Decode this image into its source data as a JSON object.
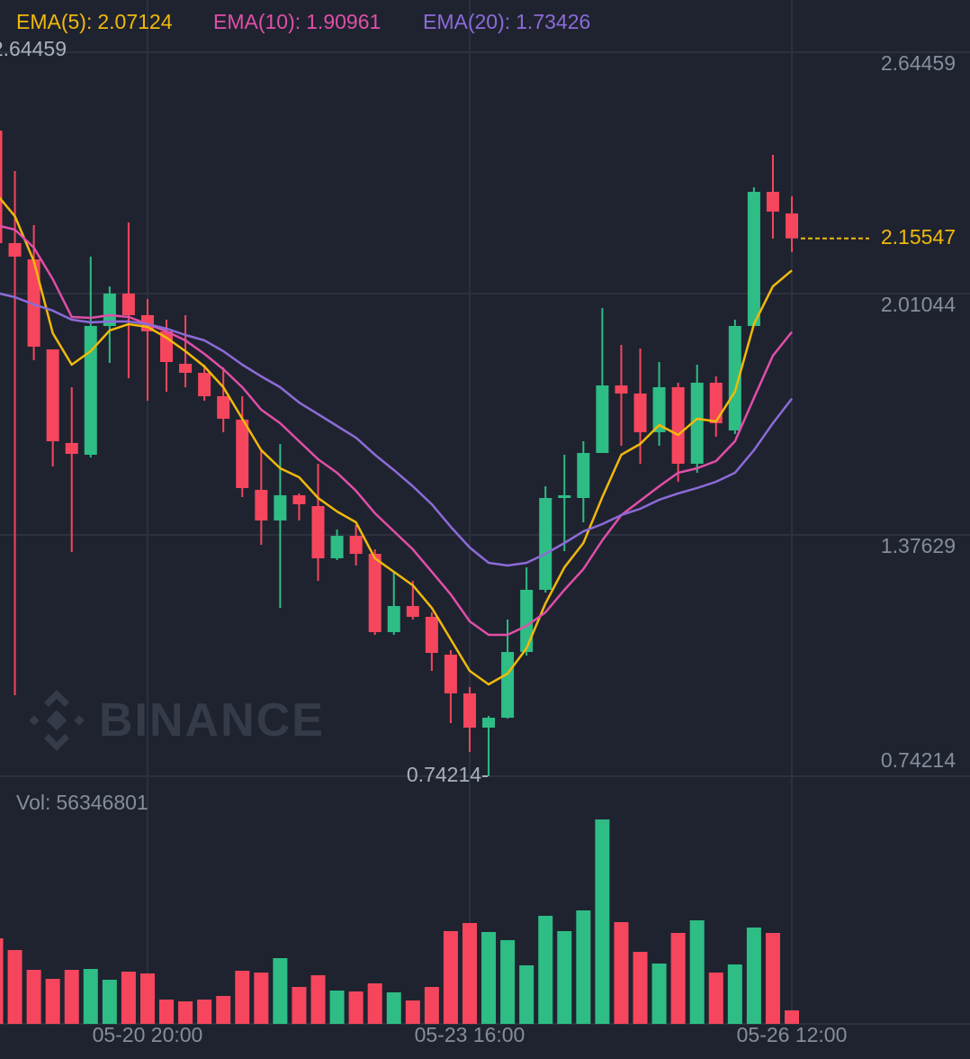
{
  "chart_data": {
    "type": "candlestick",
    "watermark": "BINANCE",
    "categories": [
      null,
      null,
      null,
      null,
      null,
      null,
      null,
      null,
      "05-20 20:00",
      null,
      null,
      null,
      null,
      null,
      null,
      null,
      null,
      null,
      null,
      null,
      null,
      null,
      null,
      null,
      null,
      "05-23 16:00",
      null,
      null,
      null,
      null,
      null,
      null,
      null,
      null,
      null,
      null,
      null,
      null,
      null,
      null,
      null,
      null,
      "05-26 12:00"
    ],
    "open": [
      2.4388,
      2.143,
      2.1004,
      1.8638,
      1.6177,
      1.5869,
      1.9253,
      2.0105,
      1.9537,
      1.9111,
      1.8259,
      1.8022,
      1.7407,
      1.6792,
      1.4946,
      1.4142,
      1.4804,
      1.452,
      1.3148,
      1.3739,
      1.3266,
      1.1208,
      1.1894,
      1.161,
      1.0616,
      0.9598,
      0.8699,
      0.8959,
      1.0687,
      1.232,
      1.4733,
      1.4733,
      1.5916,
      1.7691,
      1.7478,
      1.6461,
      1.7644,
      1.5633,
      1.7762,
      1.6508,
      1.9253,
      2.2778,
      2.221
    ],
    "high": [
      2.4506,
      2.3323,
      2.1903,
      1.8638,
      1.7644,
      2.1075,
      2.0294,
      2.1974,
      1.9963,
      1.9419,
      1.9537,
      1.8235,
      1.8164,
      1.7407,
      1.5988,
      1.6153,
      1.4852,
      1.5633,
      1.3905,
      1.4023,
      1.3384,
      1.2793,
      1.2556,
      1.1728,
      1.0734,
      0.9764,
      0.9007,
      1.1539,
      1.2911,
      1.5041,
      1.5869,
      1.6224,
      1.9726,
      1.8756,
      1.8661,
      1.8306,
      1.7762,
      1.8235,
      1.7928,
      1.9419,
      2.2897,
      2.3748,
      2.266
    ],
    "low": [
      2.143,
      0.9551,
      1.8353,
      1.5561,
      1.3313,
      1.5798,
      1.8283,
      1.788,
      1.7289,
      1.7526,
      1.7644,
      1.7289,
      1.6461,
      1.4757,
      1.3503,
      1.1846,
      1.4142,
      1.2556,
      1.3101,
      1.2959,
      1.1137,
      1.1137,
      1.1539,
      1.019,
      0.8817,
      0.806,
      0.74214,
      0.8936,
      1.0592,
      1.2248,
      1.3337,
      1.4094,
      1.5916,
      1.6106,
      1.5633,
      1.6106,
      1.5159,
      1.5395,
      1.6342,
      1.6413,
      1.9253,
      2.1548,
      2.1193
    ],
    "close": [
      2.143,
      2.1075,
      1.8709,
      1.6224,
      1.5893,
      1.9253,
      2.0105,
      1.9537,
      1.9111,
      1.8306,
      1.8022,
      1.7407,
      1.6816,
      1.4994,
      1.4142,
      1.4804,
      1.4568,
      1.3148,
      1.3739,
      1.3266,
      1.1208,
      1.1894,
      1.161,
      1.0663,
      0.9598,
      0.8699,
      0.8959,
      1.0687,
      1.232,
      1.4733,
      1.4804,
      1.5916,
      1.7691,
      1.7478,
      1.6461,
      1.7644,
      1.5633,
      1.7762,
      1.6697,
      1.9253,
      2.2778,
      2.2258,
      2.15547
    ],
    "up_color": "#2ebd85",
    "down_color": "#f6465d",
    "last_price_color": "#f0b90b",
    "series": [
      {
        "name": "EMA(5):",
        "color": "#f0b90b",
        "values": [
          2.2731,
          2.2139,
          2.0956,
          1.9064,
          1.8235,
          1.859,
          1.9135,
          1.93,
          1.9229,
          1.8945,
          1.859,
          1.8188,
          1.7644,
          1.6816,
          1.5988,
          1.5514,
          1.5277,
          1.4733,
          1.4378,
          1.4094,
          1.3148,
          1.2793,
          1.2438,
          1.1846,
          1.1018,
          1.019,
          0.9835,
          1.0119,
          1.0781,
          1.1964,
          1.2911,
          1.355,
          1.4757,
          1.5869,
          1.6153,
          1.665,
          1.6389,
          1.6816,
          1.6744,
          1.7526,
          1.93,
          2.0294,
          2.07124
        ]
      },
      {
        "name": "EMA(10):",
        "color": "#e04fa8",
        "values": [
          2.1903,
          2.1785,
          2.1311,
          2.0483,
          1.949,
          1.9466,
          1.9537,
          1.949,
          1.93,
          1.9111,
          1.8874,
          1.8519,
          1.8117,
          1.7644,
          1.7052,
          1.6697,
          1.6224,
          1.5751,
          1.5395,
          1.4922,
          1.4331,
          1.3857,
          1.3384,
          1.2793,
          1.2201,
          1.1491,
          1.1137,
          1.1137,
          1.1373,
          1.1728,
          1.232,
          1.2864,
          1.3621,
          1.4284,
          1.4662,
          1.5041,
          1.5395,
          1.5514,
          1.5703,
          1.6224,
          1.736,
          1.8472,
          1.90961
        ]
      },
      {
        "name": "EMA(20):",
        "color": "#8c6bd8",
        "values": [
          2.0128,
          2.001,
          1.982,
          1.9655,
          1.9419,
          1.9347,
          1.9371,
          1.9371,
          1.93,
          1.9182,
          1.9016,
          1.8874,
          1.859,
          1.8235,
          1.7928,
          1.7644,
          1.7241,
          1.6934,
          1.6626,
          1.6318,
          1.5869,
          1.5467,
          1.5041,
          1.4568,
          1.3976,
          1.3432,
          1.303,
          1.2959,
          1.303,
          1.3266,
          1.355,
          1.3857,
          1.4047,
          1.4284,
          1.4449,
          1.4686,
          1.4852,
          1.4994,
          1.5159,
          1.5395,
          1.5988,
          1.6697,
          1.73426
        ]
      }
    ],
    "volume": {
      "name": "Vol:",
      "values": [
        356900000,
        308000000,
        225400000,
        187800000,
        225400000,
        229100000,
        184100000,
        217900000,
        210400000,
        101400000,
        93900000,
        101400000,
        116500000,
        221600000,
        214100000,
        274200000,
        154000000,
        202900000,
        139000000,
        135200000,
        169000000,
        131500000,
        97700000,
        154000000,
        386900000,
        420700000,
        383200000,
        349400000,
        244200000,
        450800000,
        386900000,
        473300000,
        852700000,
        424500000,
        300500000,
        251700000,
        379400000,
        432000000,
        214100000,
        247900000,
        401900000,
        379400000,
        56346801
      ]
    },
    "ylim": [
      0.74214,
      2.64459
    ],
    "yticks": [
      0.74214,
      1.37629,
      2.01044,
      2.64459
    ],
    "grid": true
  }
}
